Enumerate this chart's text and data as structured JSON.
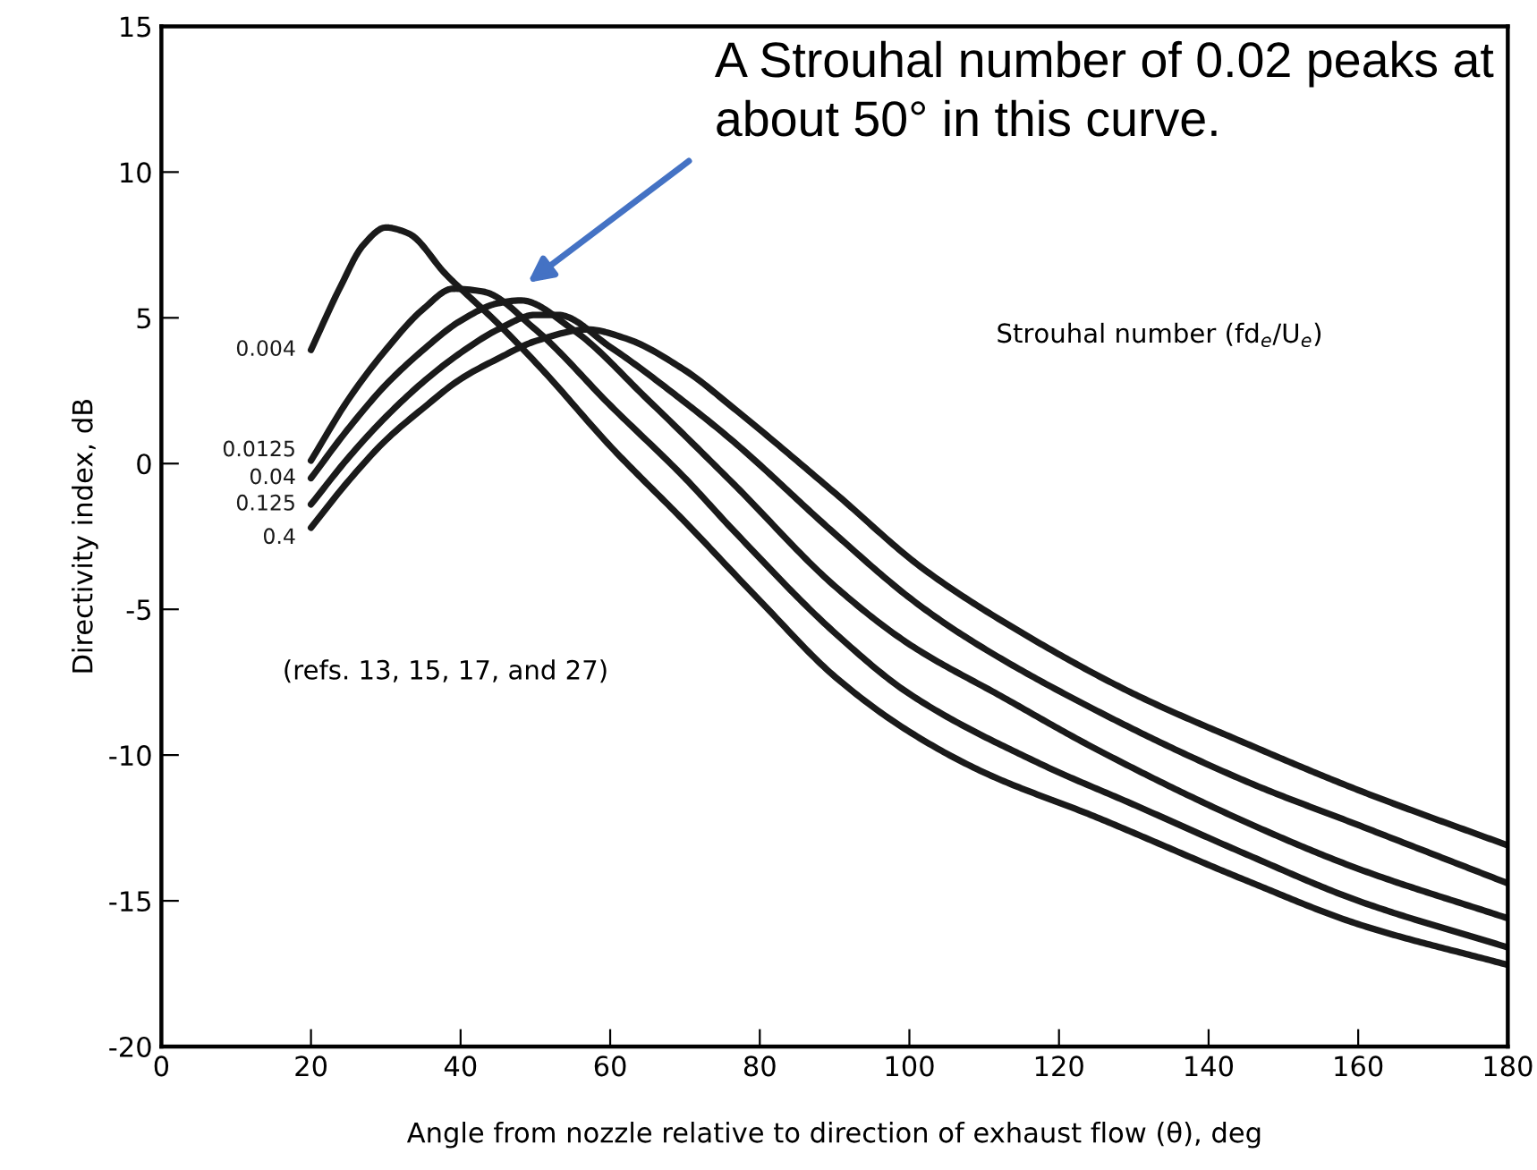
{
  "chart_data": {
    "type": "line",
    "xlabel": "Angle from nozzle relative to direction of exhaust flow (θ), deg",
    "ylabel": "Directivity index, dB",
    "legend_title": "Strouhal number (fd$_{e}$/U$_{e}$)",
    "xlim": [
      0,
      180
    ],
    "xticks": [
      0,
      20,
      40,
      60,
      80,
      100,
      120,
      140,
      160,
      180
    ],
    "ylim": [
      -20,
      15
    ],
    "yticks": [
      -20,
      -15,
      -10,
      -5,
      0,
      5,
      10,
      15
    ],
    "grid": false,
    "legend": false,
    "marker": "none",
    "line_style": "solid",
    "series": [
      {
        "name": "0.4",
        "color": "#1a1a1a",
        "x": [
          20,
          25,
          30,
          35,
          40,
          45,
          50,
          57,
          62,
          70,
          76.5,
          90,
          101.8,
          115,
          130,
          145,
          160,
          180
        ],
        "values": [
          -2.2,
          -0.6,
          0.8,
          1.9,
          2.9,
          3.6,
          4.2,
          4.6,
          4.3,
          3.2,
          1.9,
          -1.0,
          -3.6,
          -5.8,
          -7.9,
          -9.6,
          -11.2,
          -13.1
        ]
      },
      {
        "name": "0.125",
        "color": "#1a1a1a",
        "x": [
          20,
          25,
          30,
          35,
          40,
          45,
          50,
          53,
          60,
          70,
          76.5,
          90,
          100,
          106.6,
          120,
          145,
          160,
          180
        ],
        "values": [
          -1.4,
          0.2,
          1.6,
          2.8,
          3.8,
          4.6,
          5.1,
          5.1,
          4.0,
          2.1,
          0.75,
          -2.4,
          -4.6,
          -5.8,
          -7.8,
          -10.9,
          -12.4,
          -14.4
        ]
      },
      {
        "name": "0.04",
        "color": "#1a1a1a",
        "x": [
          20,
          25,
          30,
          35,
          40,
          45,
          48,
          55,
          65,
          76.5,
          90,
          100,
          112.4,
          125,
          145,
          160,
          180
        ],
        "values": [
          -0.5,
          1.2,
          2.7,
          3.9,
          4.9,
          5.5,
          5.6,
          4.6,
          2.2,
          -0.7,
          -4.2,
          -6.2,
          -8.0,
          -9.8,
          -12.3,
          -13.9,
          -15.6
        ]
      },
      {
        "name": "0.0125",
        "color": "#1a1a1a",
        "x": [
          20,
          25,
          30,
          35,
          39,
          43,
          50,
          60,
          70,
          76.5,
          90,
          100,
          117.5,
          130,
          145,
          160,
          180
        ],
        "values": [
          0.1,
          2.2,
          3.9,
          5.3,
          6.0,
          5.9,
          4.6,
          2.0,
          -0.5,
          -2.3,
          -5.8,
          -7.9,
          -10.3,
          -11.7,
          -13.4,
          -15.0,
          -16.6
        ]
      },
      {
        "name": "0.004",
        "color": "#1a1a1a",
        "x": [
          20,
          24,
          27,
          30,
          33,
          38,
          45,
          51,
          60,
          70,
          80,
          90,
          100,
          110,
          124.7,
          145,
          160,
          180
        ],
        "values": [
          3.9,
          6.1,
          7.5,
          8.1,
          7.9,
          6.5,
          4.8,
          3.2,
          0.6,
          -2.0,
          -4.7,
          -7.3,
          -9.2,
          -10.6,
          -12.1,
          -14.3,
          -15.8,
          -17.2
        ]
      }
    ],
    "annotations": [
      "A Strouhal number of 0.02 peaks at about 50° in this curve.",
      "(refs. 13, 15, 17, and 27)"
    ]
  }
}
